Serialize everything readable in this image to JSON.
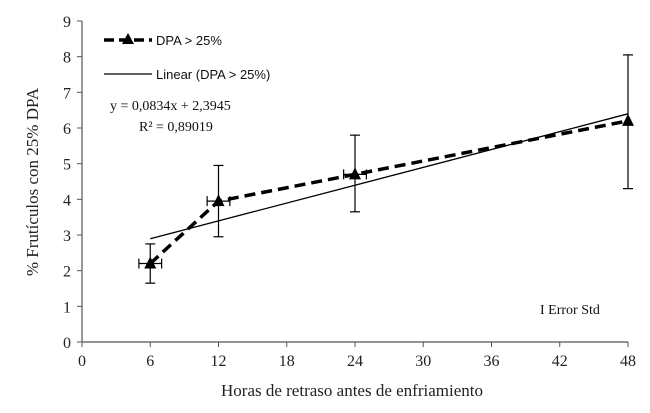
{
  "chart_data": {
    "type": "line",
    "title": "",
    "xlabel": "Horas de retraso antes de enfriamiento",
    "ylabel": "% Frutículos con 25% DPA",
    "xlim": [
      0,
      48
    ],
    "ylim": [
      0,
      9
    ],
    "x_ticks": [
      0,
      6,
      12,
      18,
      24,
      30,
      36,
      42,
      48
    ],
    "y_ticks": [
      0,
      1,
      2,
      3,
      4,
      5,
      6,
      7,
      8,
      9
    ],
    "grid": false,
    "legend_position": "top-left",
    "series": [
      {
        "name": "DPA > 25%",
        "style": "dashed-with-triangle-markers",
        "color": "#000000",
        "points": [
          {
            "x": 6,
            "y": 2.2,
            "y_err_low": 1.65,
            "y_err_high": 2.75,
            "x_err": 1
          },
          {
            "x": 12,
            "y": 3.95,
            "y_err_low": 2.95,
            "y_err_high": 4.95,
            "x_err": 1
          },
          {
            "x": 24,
            "y": 4.7,
            "y_err_low": 3.65,
            "y_err_high": 5.8,
            "x_err": 1
          },
          {
            "x": 48,
            "y": 6.2,
            "y_err_low": 4.3,
            "y_err_high": 8.05,
            "x_err": 0
          }
        ]
      },
      {
        "name": "Linear (DPA > 25%)",
        "style": "solid-trendline",
        "color": "#000000",
        "x_range": [
          6,
          48
        ]
      }
    ],
    "equation": "y = 0,0834x + 2,3945",
    "r_squared": "R² = 0,89019",
    "trend": {
      "slope": 0.0834,
      "intercept": 2.3945
    },
    "note": "I Error Std"
  }
}
